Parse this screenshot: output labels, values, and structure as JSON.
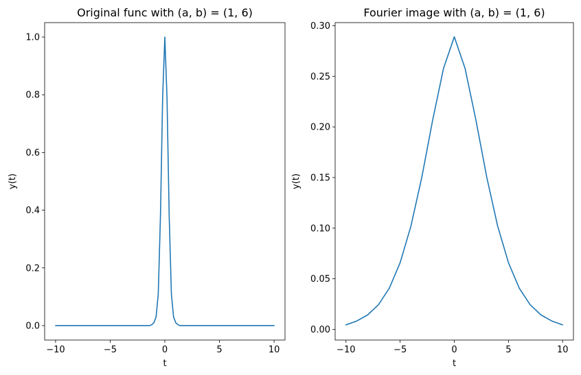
{
  "chart_data": [
    {
      "type": "line",
      "title": "Original func with (a, b) = (1, 6)",
      "xlabel": "t",
      "ylabel": "y(t)",
      "xlim": [
        -11,
        11
      ],
      "ylim": [
        -0.05,
        1.05
      ],
      "xticks": [
        -10,
        -5,
        0,
        5,
        10
      ],
      "xtick_labels": [
        "−10",
        "−5",
        "0",
        "5",
        "10"
      ],
      "yticks": [
        0.0,
        0.2,
        0.4,
        0.6,
        0.8,
        1.0
      ],
      "ytick_labels": [
        "0.0",
        "0.2",
        "0.4",
        "0.6",
        "0.8",
        "1.0"
      ],
      "grid": false,
      "series": [
        {
          "color": "#1f77b4",
          "x": [
            -10,
            -2,
            -1.4,
            -1.2,
            -1.0,
            -0.8,
            -0.6,
            -0.4,
            -0.2,
            0,
            0.2,
            0.4,
            0.6,
            0.8,
            1.0,
            1.2,
            1.4,
            2,
            10
          ],
          "y": [
            0.0,
            0.0,
            0.0,
            0.003,
            0.01,
            0.03,
            0.11,
            0.38,
            0.79,
            1.0,
            0.79,
            0.38,
            0.11,
            0.03,
            0.01,
            0.003,
            0.0,
            0.0,
            0.0
          ]
        }
      ]
    },
    {
      "type": "line",
      "title": "Fourier image with (a, b) = (1, 6)",
      "xlabel": "t",
      "ylabel": "y(t)",
      "xlim": [
        -11,
        11
      ],
      "ylim": [
        -0.0105,
        0.303
      ],
      "xticks": [
        -10,
        -5,
        0,
        5,
        10
      ],
      "xtick_labels": [
        "−10",
        "−5",
        "0",
        "5",
        "10"
      ],
      "yticks": [
        0.0,
        0.05,
        0.1,
        0.15,
        0.2,
        0.25,
        0.3
      ],
      "ytick_labels": [
        "0.00",
        "0.05",
        "0.10",
        "0.15",
        "0.20",
        "0.25",
        "0.30"
      ],
      "grid": false,
      "series": [
        {
          "color": "#1f77b4",
          "x": [
            -10,
            -9,
            -8,
            -7,
            -6,
            -5,
            -4,
            -3,
            -2,
            -1,
            0,
            1,
            2,
            3,
            4,
            5,
            6,
            7,
            8,
            9,
            10
          ],
          "y": [
            0.0045,
            0.0083,
            0.0143,
            0.0244,
            0.0407,
            0.0659,
            0.1022,
            0.1502,
            0.2065,
            0.2576,
            0.289,
            0.2576,
            0.2065,
            0.1502,
            0.1022,
            0.0659,
            0.0407,
            0.0244,
            0.0143,
            0.0083,
            0.0045
          ]
        }
      ]
    }
  ]
}
